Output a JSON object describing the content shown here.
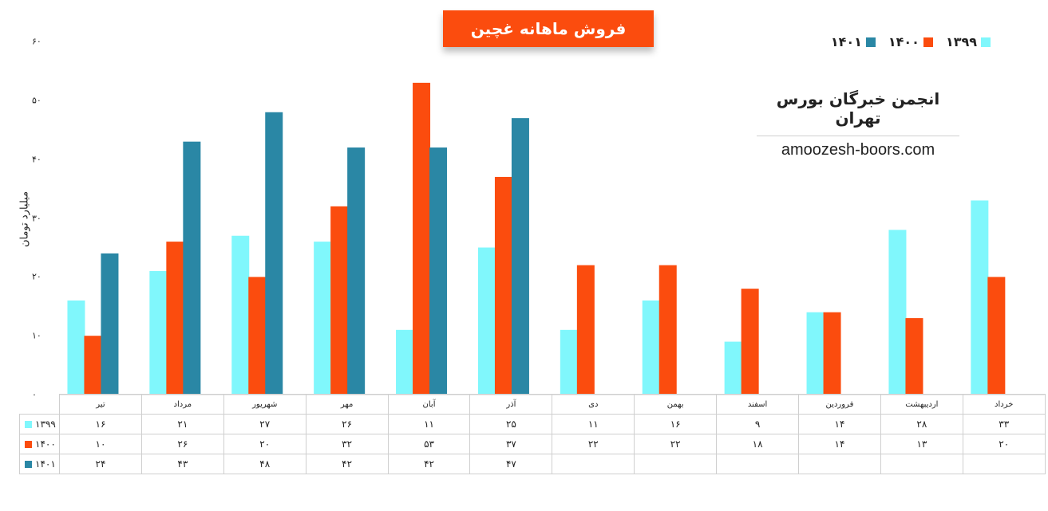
{
  "title": "فروش ماهانه غچین",
  "brand": {
    "name": "انجمن خبرگان بورس تهران",
    "site": "amoozesh-boors.com"
  },
  "chart_data": {
    "type": "bar",
    "title": "فروش ماهانه غچین",
    "ylabel": "میلیارد تومان",
    "ylim": [
      0,
      60
    ],
    "yticks": [
      "۰",
      "۱۰",
      "۲۰",
      "۳۰",
      "۴۰",
      "۵۰",
      "۶۰"
    ],
    "categories": [
      "تیر",
      "مرداد",
      "شهریور",
      "مهر",
      "آبان",
      "آذر",
      "دی",
      "بهمن",
      "اسفند",
      "فروردین",
      "اردیبهشت",
      "خرداد"
    ],
    "series": [
      {
        "name": "۱۳۹۹",
        "color": "#80f7fc",
        "values": [
          16,
          21,
          27,
          26,
          11,
          25,
          11,
          16,
          9,
          14,
          28,
          33
        ],
        "labels": [
          "۱۶",
          "۲۱",
          "۲۷",
          "۲۶",
          "۱۱",
          "۲۵",
          "۱۱",
          "۱۶",
          "۹",
          "۱۴",
          "۲۸",
          "۳۳"
        ]
      },
      {
        "name": "۱۴۰۰",
        "color": "#fb4c0e",
        "values": [
          10,
          26,
          20,
          32,
          53,
          37,
          22,
          22,
          18,
          14,
          13,
          20
        ],
        "labels": [
          "۱۰",
          "۲۶",
          "۲۰",
          "۳۲",
          "۵۳",
          "۳۷",
          "۲۲",
          "۲۲",
          "۱۸",
          "۱۴",
          "۱۳",
          "۲۰"
        ]
      },
      {
        "name": "۱۴۰۱",
        "color": "#2a87a5",
        "values": [
          24,
          43,
          48,
          42,
          42,
          47,
          null,
          null,
          null,
          null,
          null,
          null
        ],
        "labels": [
          "۲۴",
          "۴۳",
          "۴۸",
          "۴۲",
          "۴۲",
          "۴۷",
          "",
          "",
          "",
          "",
          "",
          ""
        ]
      }
    ],
    "legend": "top-right",
    "grid": false
  }
}
